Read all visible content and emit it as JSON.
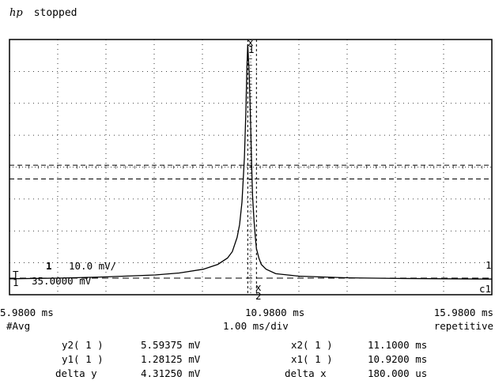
{
  "header": {
    "logo": "hp",
    "status": "stopped"
  },
  "screen": {
    "channel_marker": "1",
    "scale_text": "10.0 mV/",
    "offset_text": "35.0000 mV",
    "trigger_label": "T",
    "ground_label": "1",
    "coupling_label": "c1",
    "cursor_x1_label": "x",
    "cursor_x2_label": "x",
    "cursor_y_label_1": "1",
    "cursor_y_label_2": "2",
    "right_marker": "1"
  },
  "timebase": {
    "left": "5.9800 ms",
    "center": "10.9800 ms",
    "right": "15.9800 ms",
    "avg": "#Avg",
    "per_div": "1.00 ms/div",
    "mode": "repetitive"
  },
  "measurements": {
    "y2_label": "y2( 1 )",
    "y2_value": "5.59375 mV",
    "y1_label": "y1( 1 )",
    "y1_value": "1.28125 mV",
    "dy_label": "delta y",
    "dy_value": "4.31250 mV",
    "x2_label": "x2( 1 )",
    "x2_value": "11.1000 ms",
    "x1_label": "x1( 1 )",
    "x1_value": "10.9200 ms",
    "dx_label": "delta x",
    "dx_value": "180.000 us"
  },
  "chart_data": {
    "type": "line",
    "xlim": [
      5.98,
      15.98
    ],
    "ylim": [
      -35,
      45
    ],
    "series": [
      {
        "x": [
          5.98,
          7.0,
          8.0,
          9.0,
          9.5,
          10.0,
          10.3,
          10.5,
          10.6,
          10.7,
          10.75,
          10.8,
          10.85,
          10.88,
          10.9,
          10.92,
          10.95,
          10.98,
          11.0,
          11.02,
          11.05,
          11.08,
          11.1,
          11.15,
          11.2,
          11.3,
          11.5,
          12.0,
          13.0,
          14.0,
          15.0,
          15.98
        ],
        "y": [
          -30.0,
          -29.8,
          -29.4,
          -28.8,
          -28.2,
          -27.0,
          -25.5,
          -23.5,
          -21.5,
          -17.0,
          -13.0,
          -6.0,
          8.0,
          22.0,
          35.0,
          43.5,
          34.0,
          18.0,
          6.0,
          -4.0,
          -12.0,
          -17.5,
          -20.5,
          -23.5,
          -25.5,
          -27.0,
          -28.4,
          -29.2,
          -29.7,
          -29.9,
          -30.0,
          -30.1
        ]
      }
    ],
    "cursors": {
      "x1": 10.92,
      "x2": 11.1,
      "y1": 1.28125,
      "y2": 5.59375
    }
  }
}
